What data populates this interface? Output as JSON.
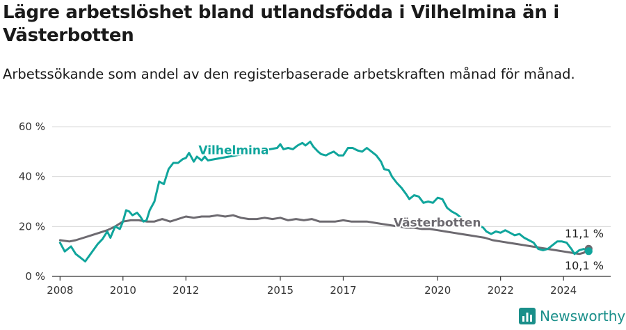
{
  "title": "Lägre arbetslöshet bland utlandsfödda i Vilhelmina än i Västerbotten",
  "subtitle": "Arbetssökande som andel av den registerbaserade arbetskraften månad för månad.",
  "brand": {
    "name": "Newsworthy",
    "icon": "newsworthy-logo-icon",
    "color": "#1a8f8a"
  },
  "colors": {
    "vilhelmina": "#10a59c",
    "vasterbotten": "#6d6a70",
    "grid": "#d9d9d9",
    "axis": "#333333"
  },
  "chart_data": {
    "type": "line",
    "xlim": [
      2007.75,
      2025.5
    ],
    "ylim": [
      0,
      60
    ],
    "x_ticks": [
      {
        "value": 2008,
        "label": "2008"
      },
      {
        "value": 2010,
        "label": "2010"
      },
      {
        "value": 2012,
        "label": "2012"
      },
      {
        "value": 2015,
        "label": "2015"
      },
      {
        "value": 2017,
        "label": "2017"
      },
      {
        "value": 2020,
        "label": "2020"
      },
      {
        "value": 2022,
        "label": "2022"
      },
      {
        "value": 2024,
        "label": "2024"
      }
    ],
    "y_ticks": [
      {
        "value": 0,
        "label": "0 %"
      },
      {
        "value": 20,
        "label": "20 %"
      },
      {
        "value": 40,
        "label": "40 %"
      },
      {
        "value": 60,
        "label": "60 %"
      }
    ],
    "grid": true,
    "series": [
      {
        "name": "Vilhelmina",
        "label_at": [
          2012.4,
          49
        ],
        "end_label": "10,1 %",
        "points": [
          [
            2008.0,
            13.5
          ],
          [
            2008.15,
            10.0
          ],
          [
            2008.35,
            12.0
          ],
          [
            2008.5,
            9.0
          ],
          [
            2008.65,
            7.5
          ],
          [
            2008.8,
            6.0
          ],
          [
            2009.0,
            9.5
          ],
          [
            2009.2,
            13.0
          ],
          [
            2009.35,
            15.0
          ],
          [
            2009.5,
            18.0
          ],
          [
            2009.6,
            15.5
          ],
          [
            2009.75,
            20.0
          ],
          [
            2009.9,
            19.0
          ],
          [
            2010.0,
            22.0
          ],
          [
            2010.1,
            26.5
          ],
          [
            2010.2,
            26.0
          ],
          [
            2010.3,
            24.5
          ],
          [
            2010.45,
            25.5
          ],
          [
            2010.55,
            24.0
          ],
          [
            2010.65,
            22.0
          ],
          [
            2010.75,
            22.5
          ],
          [
            2010.85,
            26.5
          ],
          [
            2011.0,
            30.0
          ],
          [
            2011.15,
            38.0
          ],
          [
            2011.3,
            37.0
          ],
          [
            2011.45,
            43.0
          ],
          [
            2011.6,
            45.5
          ],
          [
            2011.75,
            45.5
          ],
          [
            2011.9,
            47.0
          ],
          [
            2012.0,
            47.5
          ],
          [
            2012.1,
            49.5
          ],
          [
            2012.25,
            46.0
          ],
          [
            2012.35,
            48.0
          ],
          [
            2012.5,
            46.5
          ],
          [
            2012.6,
            48.0
          ],
          [
            2012.7,
            46.5
          ],
          [
            2014.9,
            51.5
          ],
          [
            2015.0,
            53.0
          ],
          [
            2015.1,
            51.0
          ],
          [
            2015.25,
            51.5
          ],
          [
            2015.4,
            51.0
          ],
          [
            2015.55,
            52.5
          ],
          [
            2015.7,
            53.5
          ],
          [
            2015.8,
            52.5
          ],
          [
            2015.95,
            54.0
          ],
          [
            2016.05,
            52.0
          ],
          [
            2016.2,
            50.0
          ],
          [
            2016.3,
            49.0
          ],
          [
            2016.45,
            48.5
          ],
          [
            2016.6,
            49.5
          ],
          [
            2016.7,
            50.0
          ],
          [
            2016.85,
            48.5
          ],
          [
            2017.0,
            48.5
          ],
          [
            2017.15,
            51.5
          ],
          [
            2017.3,
            51.5
          ],
          [
            2017.45,
            50.5
          ],
          [
            2017.6,
            50.0
          ],
          [
            2017.75,
            51.5
          ],
          [
            2017.9,
            50.0
          ],
          [
            2018.05,
            48.5
          ],
          [
            2018.2,
            46.0
          ],
          [
            2018.3,
            43.0
          ],
          [
            2018.45,
            42.5
          ],
          [
            2018.55,
            40.0
          ],
          [
            2018.7,
            37.5
          ],
          [
            2018.85,
            35.5
          ],
          [
            2019.0,
            33.0
          ],
          [
            2019.1,
            31.0
          ],
          [
            2019.25,
            32.5
          ],
          [
            2019.4,
            32.0
          ],
          [
            2019.55,
            29.5
          ],
          [
            2019.7,
            30.0
          ],
          [
            2019.85,
            29.5
          ],
          [
            2020.0,
            31.5
          ],
          [
            2020.15,
            31.0
          ],
          [
            2020.3,
            27.5
          ],
          [
            2020.45,
            26.0
          ],
          [
            2020.6,
            25.0
          ],
          [
            2020.75,
            23.5
          ],
          [
            2020.85,
            21.5
          ],
          [
            2021.0,
            20.5
          ],
          [
            2021.15,
            21.5
          ],
          [
            2021.3,
            20.5
          ],
          [
            2021.45,
            19.5
          ],
          [
            2021.55,
            18.0
          ],
          [
            2021.7,
            17.0
          ],
          [
            2021.85,
            18.0
          ],
          [
            2022.0,
            17.5
          ],
          [
            2022.15,
            18.5
          ],
          [
            2022.3,
            17.5
          ],
          [
            2022.45,
            16.5
          ],
          [
            2022.6,
            17.0
          ],
          [
            2022.75,
            15.5
          ],
          [
            2022.9,
            14.5
          ],
          [
            2023.05,
            13.5
          ],
          [
            2023.2,
            11.0
          ],
          [
            2023.35,
            10.5
          ],
          [
            2023.5,
            11.0
          ],
          [
            2023.65,
            12.5
          ],
          [
            2023.8,
            14.0
          ],
          [
            2023.95,
            14.0
          ],
          [
            2024.1,
            13.5
          ],
          [
            2024.25,
            11.0
          ],
          [
            2024.35,
            9.0
          ],
          [
            2024.5,
            10.5
          ],
          [
            2024.65,
            11.0
          ],
          [
            2024.8,
            10.1
          ]
        ]
      },
      {
        "name": "Västerbotten",
        "label_at": [
          2018.6,
          20
        ],
        "end_label": "11,1 %",
        "points": [
          [
            2008.0,
            14.5
          ],
          [
            2008.3,
            14.0
          ],
          [
            2008.5,
            14.5
          ],
          [
            2008.75,
            15.5
          ],
          [
            2009.0,
            16.5
          ],
          [
            2009.25,
            17.5
          ],
          [
            2009.5,
            18.5
          ],
          [
            2009.75,
            20.0
          ],
          [
            2010.0,
            22.0
          ],
          [
            2010.25,
            22.5
          ],
          [
            2010.5,
            22.5
          ],
          [
            2010.75,
            22.0
          ],
          [
            2011.0,
            22.0
          ],
          [
            2011.25,
            23.0
          ],
          [
            2011.5,
            22.0
          ],
          [
            2011.75,
            23.0
          ],
          [
            2012.0,
            24.0
          ],
          [
            2012.25,
            23.5
          ],
          [
            2012.5,
            24.0
          ],
          [
            2012.75,
            24.0
          ],
          [
            2013.0,
            24.5
          ],
          [
            2013.25,
            24.0
          ],
          [
            2013.5,
            24.5
          ],
          [
            2013.75,
            23.5
          ],
          [
            2014.0,
            23.0
          ],
          [
            2014.25,
            23.0
          ],
          [
            2014.5,
            23.5
          ],
          [
            2014.75,
            23.0
          ],
          [
            2015.0,
            23.5
          ],
          [
            2015.25,
            22.5
          ],
          [
            2015.5,
            23.0
          ],
          [
            2015.75,
            22.5
          ],
          [
            2016.0,
            23.0
          ],
          [
            2016.25,
            22.0
          ],
          [
            2016.5,
            22.0
          ],
          [
            2016.75,
            22.0
          ],
          [
            2017.0,
            22.5
          ],
          [
            2017.25,
            22.0
          ],
          [
            2017.5,
            22.0
          ],
          [
            2017.75,
            22.0
          ],
          [
            2018.0,
            21.5
          ],
          [
            2018.25,
            21.0
          ],
          [
            2018.5,
            20.5
          ],
          [
            2018.75,
            20.0
          ],
          [
            2019.0,
            19.5
          ],
          [
            2019.25,
            19.5
          ],
          [
            2019.5,
            19.0
          ],
          [
            2019.75,
            19.0
          ],
          [
            2020.0,
            18.5
          ],
          [
            2020.25,
            18.0
          ],
          [
            2020.5,
            17.5
          ],
          [
            2020.75,
            17.0
          ],
          [
            2021.0,
            16.5
          ],
          [
            2021.25,
            16.0
          ],
          [
            2021.5,
            15.5
          ],
          [
            2021.75,
            14.5
          ],
          [
            2022.0,
            14.0
          ],
          [
            2022.25,
            13.5
          ],
          [
            2022.5,
            13.0
          ],
          [
            2022.75,
            12.5
          ],
          [
            2023.0,
            12.0
          ],
          [
            2023.25,
            11.5
          ],
          [
            2023.5,
            11.0
          ],
          [
            2023.75,
            10.5
          ],
          [
            2024.0,
            10.0
          ],
          [
            2024.25,
            9.5
          ],
          [
            2024.5,
            9.0
          ],
          [
            2024.65,
            9.5
          ],
          [
            2024.8,
            11.1
          ]
        ]
      }
    ]
  }
}
